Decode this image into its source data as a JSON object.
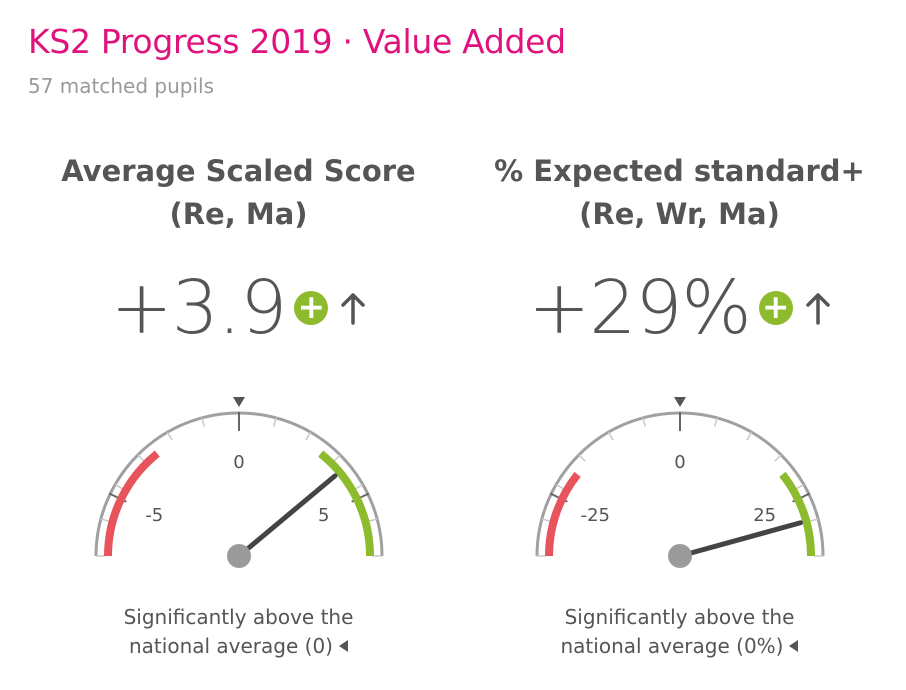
{
  "header": {
    "title": "KS2 Progress 2019 · Value Added",
    "subtitle": "57 matched pupils"
  },
  "colors": {
    "accent": "#e0127c",
    "positive": "#8cbb2e",
    "negative": "#e8545b",
    "text": "#555555",
    "muted": "#9a9a9a",
    "track": "#a0a0a0"
  },
  "metrics": [
    {
      "title_line1": "Average Scaled Score",
      "title_line2": "(Re, Ma)",
      "value": "+3.9",
      "status_icon": "plus-circle-icon",
      "trend_icon": "arrow-up-icon",
      "gauge": {
        "min": -7,
        "max": 7,
        "value": 3.9,
        "ticks": [
          -5,
          0,
          5
        ],
        "tick_labels": [
          "-5",
          "0",
          "5"
        ],
        "red_band": [
          -7,
          -3
        ],
        "green_band": [
          3,
          7
        ],
        "marker_value": 0
      },
      "caption_line1": "Significantly above the",
      "caption_line2": "national average (0)"
    },
    {
      "title_line1": "% Expected standard+",
      "title_line2": "(Re, Wr, Ma)",
      "value": "+29%",
      "status_icon": "plus-circle-icon",
      "trend_icon": "arrow-up-icon",
      "gauge": {
        "min": -35,
        "max": 35,
        "value": 29,
        "ticks": [
          -25,
          0,
          25
        ],
        "tick_labels": [
          "-25",
          "0",
          "25"
        ],
        "red_band": [
          -35,
          -20
        ],
        "green_band": [
          20,
          35
        ],
        "marker_value": 0
      },
      "caption_line1": "Significantly above the",
      "caption_line2": "national average (0%)"
    }
  ]
}
